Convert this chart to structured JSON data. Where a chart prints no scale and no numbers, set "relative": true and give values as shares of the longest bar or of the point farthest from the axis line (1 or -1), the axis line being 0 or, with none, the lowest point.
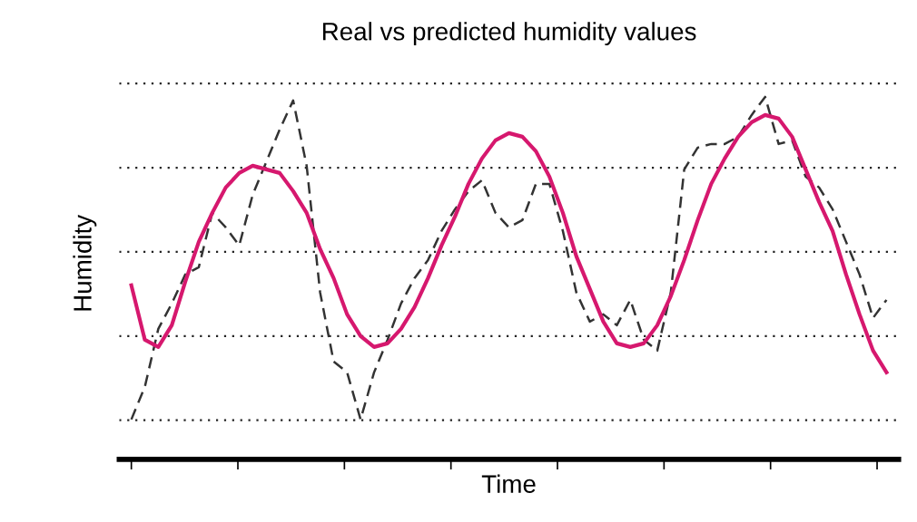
{
  "chart_data": {
    "type": "line",
    "title": "Real vs predicted humidity values",
    "xlabel": "Time",
    "ylabel": "Humidity",
    "relative": true,
    "grid": "y",
    "legend": false,
    "tick_labels": false,
    "marker": "none",
    "categories": [
      null,
      null,
      null,
      null,
      null,
      null,
      null,
      null,
      null,
      null,
      null,
      null,
      null,
      null,
      null,
      null,
      null,
      null,
      null,
      null,
      null,
      null,
      null,
      null,
      null,
      null,
      null,
      null,
      null,
      null,
      null,
      null,
      null,
      null,
      null,
      null,
      null,
      null,
      null,
      null,
      null,
      null,
      null,
      null,
      null,
      null,
      null,
      null,
      null,
      null,
      null,
      null,
      null,
      null,
      null,
      null,
      null
    ],
    "series": [
      {
        "color": "#333333",
        "line_style": "dashed",
        "values": [
          0.11,
          0.2,
          0.36,
          0.43,
          0.51,
          0.53,
          0.68,
          0.64,
          0.59,
          0.73,
          0.82,
          0.91,
          0.99,
          0.81,
          0.46,
          0.27,
          0.24,
          0.11,
          0.24,
          0.33,
          0.43,
          0.5,
          0.55,
          0.63,
          0.69,
          0.74,
          0.77,
          0.68,
          0.64,
          0.66,
          0.76,
          0.76,
          0.63,
          0.46,
          0.38,
          0.4,
          0.37,
          0.44,
          0.33,
          0.3,
          0.46,
          0.8,
          0.86,
          0.87,
          0.87,
          0.89,
          0.95,
          1.0,
          0.87,
          0.88,
          0.78,
          0.75,
          0.69,
          0.6,
          0.51,
          0.39,
          0.44
        ]
      },
      {
        "color": "#d6186e",
        "line_style": "solid",
        "values": [
          0.48,
          0.33,
          0.31,
          0.37,
          0.49,
          0.6,
          0.68,
          0.75,
          0.79,
          0.81,
          0.8,
          0.79,
          0.74,
          0.68,
          0.58,
          0.5,
          0.4,
          0.34,
          0.31,
          0.32,
          0.36,
          0.42,
          0.5,
          0.59,
          0.67,
          0.76,
          0.83,
          0.88,
          0.9,
          0.89,
          0.85,
          0.78,
          0.68,
          0.56,
          0.47,
          0.38,
          0.32,
          0.31,
          0.32,
          0.37,
          0.45,
          0.55,
          0.66,
          0.76,
          0.83,
          0.89,
          0.93,
          0.95,
          0.94,
          0.89,
          0.8,
          0.71,
          0.63,
          0.51,
          0.4,
          0.3,
          0.24
        ]
      }
    ]
  }
}
